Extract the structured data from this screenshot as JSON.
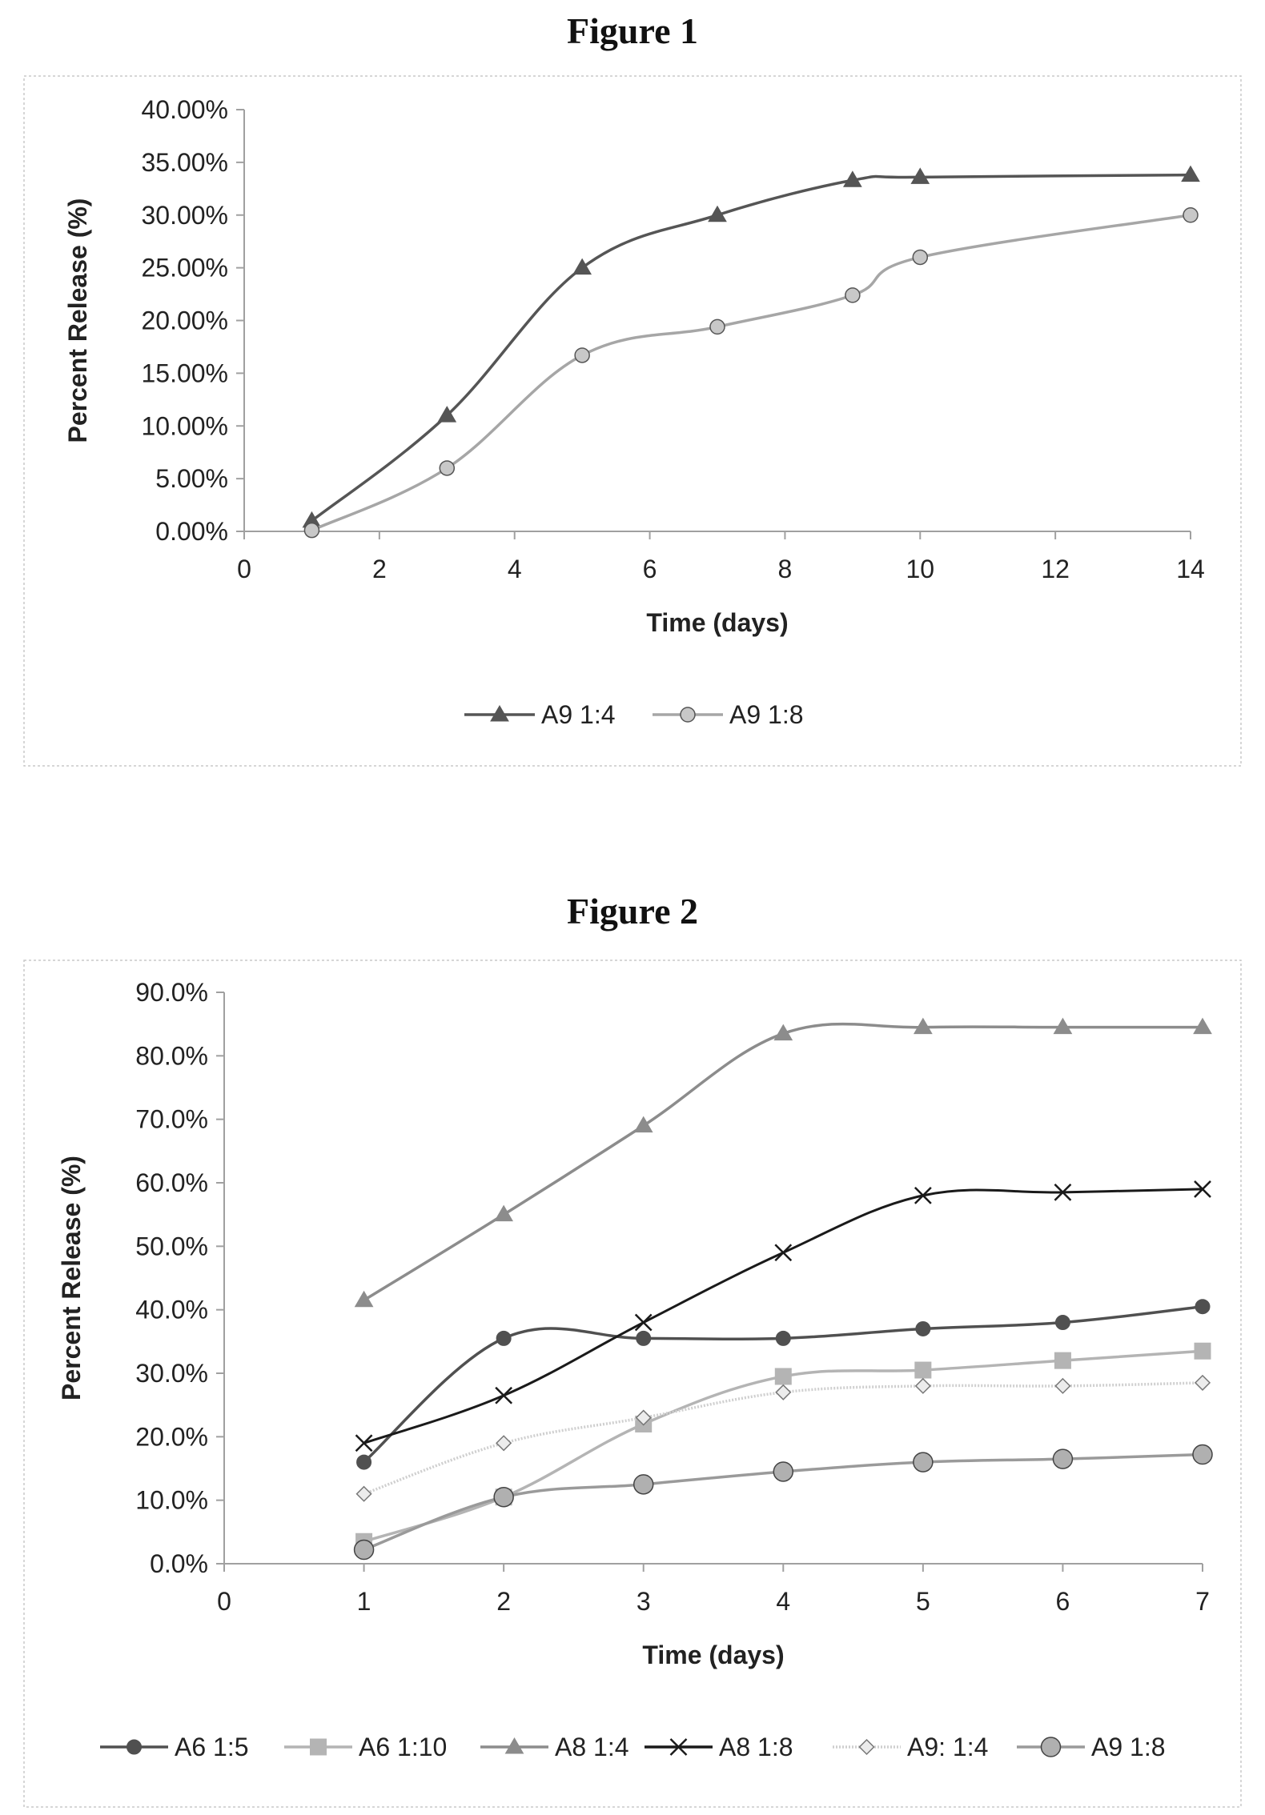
{
  "figures": [
    {
      "heading": "Figure 1",
      "chart_data": {
        "type": "line",
        "title": "",
        "xlabel": "Time (days)",
        "ylabel": "Percent Release (%)",
        "xlim": [
          0,
          14
        ],
        "ylim": [
          0,
          0.4
        ],
        "x_ticks": [
          "0",
          "2",
          "4",
          "6",
          "8",
          "10",
          "12",
          "14"
        ],
        "y_ticks": [
          "0.00%",
          "5.00%",
          "10.00%",
          "15.00%",
          "20.00%",
          "25.00%",
          "30.00%",
          "35.00%",
          "40.00%"
        ],
        "legend_position": "bottom",
        "grid": false,
        "series": [
          {
            "name": "A9 1:4",
            "marker": "triangle",
            "color": "#555555",
            "x": [
              1,
              3,
              5,
              7,
              9,
              10,
              14
            ],
            "y": [
              0.01,
              0.11,
              0.25,
              0.3,
              0.333,
              0.336,
              0.338
            ]
          },
          {
            "name": "A9 1:8",
            "marker": "circle",
            "color": "#a6a6a6",
            "x": [
              1,
              3,
              5,
              7,
              9,
              10,
              14
            ],
            "y": [
              0.001,
              0.06,
              0.167,
              0.194,
              0.224,
              0.26,
              0.3
            ]
          }
        ]
      }
    },
    {
      "heading": "Figure 2",
      "chart_data": {
        "type": "line",
        "title": "",
        "xlabel": "Time (days)",
        "ylabel": "Percent Release (%)",
        "xlim": [
          0,
          7
        ],
        "ylim": [
          0,
          0.9
        ],
        "x_ticks": [
          "0",
          "1",
          "2",
          "3",
          "4",
          "5",
          "6",
          "7"
        ],
        "y_ticks": [
          "0.0%",
          "10.0%",
          "20.0%",
          "30.0%",
          "40.0%",
          "50.0%",
          "60.0%",
          "70.0%",
          "80.0%",
          "90.0%"
        ],
        "legend_position": "bottom",
        "grid": false,
        "series": [
          {
            "name": "A6 1:5",
            "marker": "circle-small",
            "color": "#505050",
            "x": [
              1,
              2,
              3,
              4,
              5,
              6,
              7
            ],
            "y": [
              0.16,
              0.355,
              0.355,
              0.355,
              0.37,
              0.38,
              0.405
            ]
          },
          {
            "name": "A6 1:10",
            "marker": "square",
            "color": "#b4b4b4",
            "x": [
              1,
              2,
              3,
              4,
              5,
              6,
              7
            ],
            "y": [
              0.035,
              0.105,
              0.22,
              0.295,
              0.305,
              0.32,
              0.335
            ]
          },
          {
            "name": "A8 1:4",
            "marker": "triangle",
            "color": "#8c8c8c",
            "x": [
              1,
              2,
              3,
              4,
              5,
              6,
              7
            ],
            "y": [
              0.415,
              0.55,
              0.69,
              0.835,
              0.845,
              0.845,
              0.845
            ]
          },
          {
            "name": "A8 1:8",
            "marker": "x",
            "color": "#1a1a1a",
            "x": [
              1,
              2,
              3,
              4,
              5,
              6,
              7
            ],
            "y": [
              0.19,
              0.265,
              0.38,
              0.49,
              0.58,
              0.585,
              0.59
            ]
          },
          {
            "name": "A9: 1:4",
            "marker": "diamond",
            "color": "#cfcfcf",
            "x": [
              1,
              2,
              3,
              4,
              5,
              6,
              7
            ],
            "y": [
              0.11,
              0.19,
              0.23,
              0.27,
              0.28,
              0.28,
              0.285
            ]
          },
          {
            "name": "A9 1:8",
            "marker": "circle-large",
            "color": "#9a9a9a",
            "x": [
              1,
              2,
              3,
              4,
              5,
              6,
              7
            ],
            "y": [
              0.022,
              0.105,
              0.125,
              0.145,
              0.16,
              0.165,
              0.172
            ]
          }
        ]
      }
    }
  ]
}
